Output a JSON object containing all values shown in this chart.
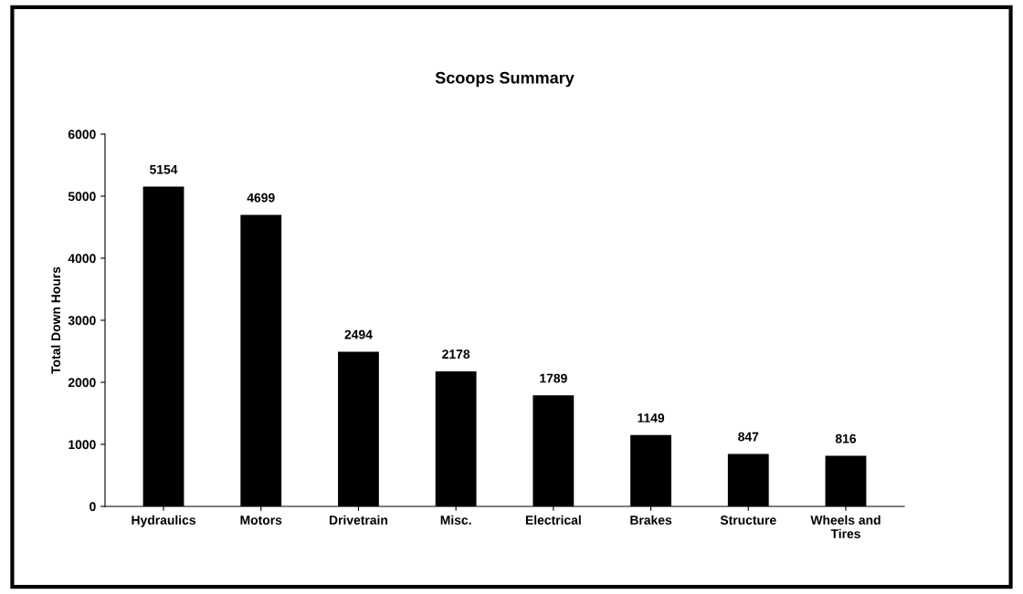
{
  "chart_data": {
    "type": "bar",
    "title": "Scoops Summary",
    "ylabel": "Total Down Hours",
    "categories": [
      "Hydraulics",
      "Motors",
      "Drivetrain",
      "Misc.",
      "Electrical",
      "Brakes",
      "Structure",
      "Wheels and\nTires"
    ],
    "values": [
      5154,
      4699,
      2494,
      2178,
      1789,
      1149,
      847,
      816
    ],
    "color": "#000000",
    "ylim": [
      0,
      6000
    ],
    "yticks": [
      0,
      1000,
      2000,
      3000,
      4000,
      5000,
      6000
    ],
    "grid": false,
    "data_labels": true
  }
}
